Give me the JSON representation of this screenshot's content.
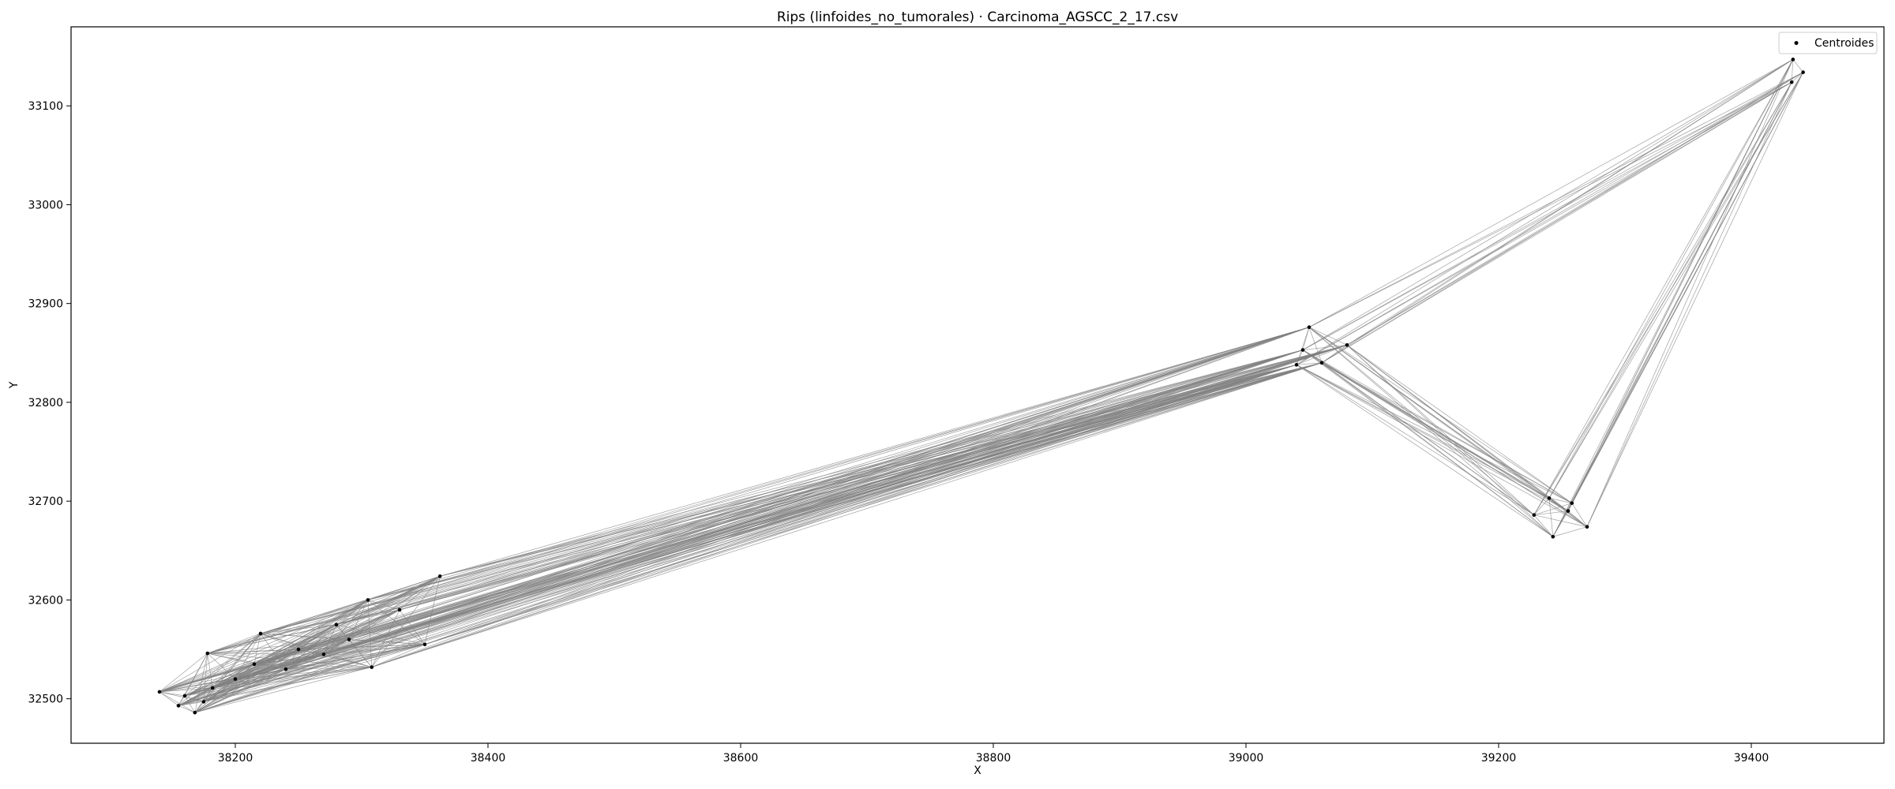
{
  "chart_data": {
    "type": "scatter",
    "title": "Rips (linfoides_no_tumorales) · Carcinoma_AGSCC_2_17.csv",
    "xlabel": "X",
    "ylabel": "Y",
    "xlim": [
      38070,
      39505
    ],
    "ylim": [
      32455,
      33180
    ],
    "xticks": [
      38200,
      38400,
      38600,
      38800,
      39000,
      39200,
      39400
    ],
    "yticks": [
      32500,
      32600,
      32700,
      32800,
      32900,
      33000,
      33100
    ],
    "grid": false,
    "legend": {
      "position": "top-right",
      "entries": [
        "Centroides"
      ]
    },
    "series": [
      {
        "name": "Centroides",
        "marker_color": "#000000",
        "edge_color": "#808080",
        "points": [
          {
            "x": 38140,
            "y": 32507
          },
          {
            "x": 38155,
            "y": 32493
          },
          {
            "x": 38168,
            "y": 32486
          },
          {
            "x": 38160,
            "y": 32503
          },
          {
            "x": 38175,
            "y": 32497
          },
          {
            "x": 38182,
            "y": 32511
          },
          {
            "x": 38178,
            "y": 32546
          },
          {
            "x": 38220,
            "y": 32566
          },
          {
            "x": 38305,
            "y": 32600
          },
          {
            "x": 38308,
            "y": 32532
          },
          {
            "x": 38362,
            "y": 32624
          },
          {
            "x": 38250,
            "y": 32550
          },
          {
            "x": 38280,
            "y": 32575
          },
          {
            "x": 38330,
            "y": 32590
          },
          {
            "x": 38350,
            "y": 32555
          },
          {
            "x": 38200,
            "y": 32520
          },
          {
            "x": 38240,
            "y": 32530
          },
          {
            "x": 38270,
            "y": 32545
          },
          {
            "x": 38290,
            "y": 32560
          },
          {
            "x": 38215,
            "y": 32535
          },
          {
            "x": 39050,
            "y": 32876
          },
          {
            "x": 39045,
            "y": 32853
          },
          {
            "x": 39060,
            "y": 32840
          },
          {
            "x": 39080,
            "y": 32858
          },
          {
            "x": 39040,
            "y": 32838
          },
          {
            "x": 39228,
            "y": 32686
          },
          {
            "x": 39243,
            "y": 32664
          },
          {
            "x": 39258,
            "y": 32698
          },
          {
            "x": 39270,
            "y": 32674
          },
          {
            "x": 39240,
            "y": 32703
          },
          {
            "x": 39255,
            "y": 32690
          },
          {
            "x": 39433,
            "y": 33147
          },
          {
            "x": 39441,
            "y": 33134
          },
          {
            "x": 39432,
            "y": 33124
          }
        ]
      }
    ]
  }
}
